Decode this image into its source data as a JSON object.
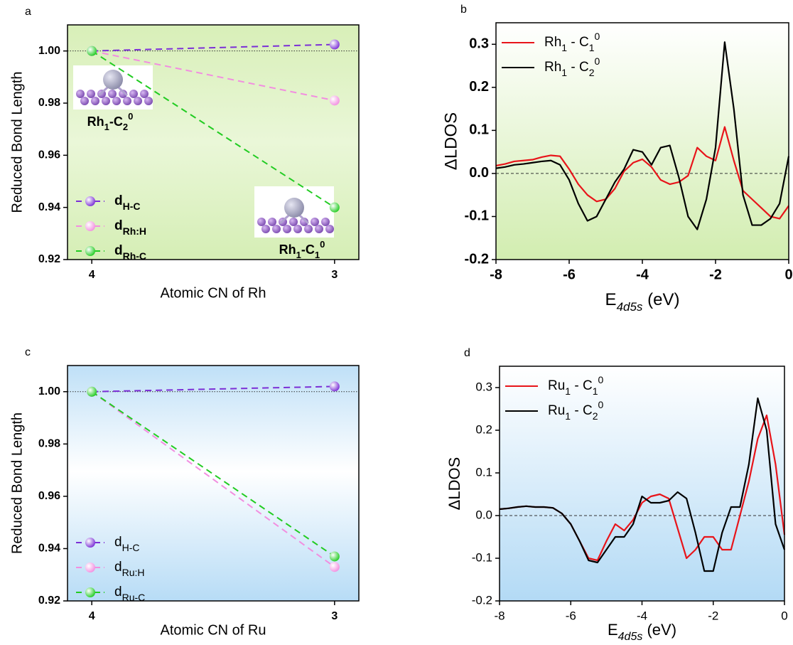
{
  "chart_data": [
    {
      "type": "line",
      "label": "a",
      "x_label": "Atomic CN of Rh",
      "y_label": "Reduced Bond Length",
      "x": [
        4,
        3
      ],
      "xlim": [
        4.1,
        2.9
      ],
      "xticks": [
        4,
        3
      ],
      "ylim": [
        0.92,
        1.01
      ],
      "yticks": [
        0.92,
        0.94,
        0.96,
        0.98,
        {
          "value": 1,
          "label": "1.00"
        }
      ],
      "hline": 1,
      "markers": true,
      "dashed": true,
      "legend": "lower left",
      "series": [
        {
          "name": [
            {
              "text": "d"
            },
            {
              "sub": "H-C"
            }
          ],
          "color": "#7b2fd6",
          "values": [
            1.0,
            1.0025
          ]
        },
        {
          "name": [
            {
              "text": "d"
            },
            {
              "sub": "Rh:H"
            }
          ],
          "color": "#f28ee0",
          "values": [
            1.0,
            0.981
          ]
        },
        {
          "name": [
            {
              "text": "d"
            },
            {
              "sub": "Rh-C"
            }
          ],
          "color": "#22cc22",
          "values": [
            1.0,
            0.94
          ]
        }
      ],
      "annotations": [
        {
          "parts": [
            {
              "text": "Rh"
            },
            {
              "sub": "1"
            },
            {
              "text": "-C"
            },
            {
              "sub": "2"
            },
            {
              "sup": "0"
            }
          ]
        },
        {
          "parts": [
            {
              "text": "Rh"
            },
            {
              "sub": "1"
            },
            {
              "text": "-C"
            },
            {
              "sub": "1"
            },
            {
              "sup": "0"
            }
          ]
        }
      ]
    },
    {
      "type": "line",
      "label": "b",
      "x_label": [
        {
          "text": "E"
        },
        {
          "sub": "4d5s"
        },
        {
          "text": " (eV)"
        }
      ],
      "y_label": "ΔLDOS",
      "x": [
        -8,
        -7.75,
        -7.5,
        -7.25,
        -7,
        -6.75,
        -6.5,
        -6.25,
        -6,
        -5.75,
        -5.5,
        -5.25,
        -5,
        -4.75,
        -4.5,
        -4.25,
        -4,
        -3.75,
        -3.5,
        -3.25,
        -3,
        -2.75,
        -2.5,
        -2.25,
        -2,
        -1.75,
        -1.5,
        -1.25,
        -1,
        -0.75,
        -0.5,
        -0.25,
        0
      ],
      "xlim": [
        -8,
        0
      ],
      "xticks": [
        -8,
        -6,
        -4,
        -2,
        0
      ],
      "ylim": [
        -0.2,
        0.35
      ],
      "yticks": [
        -0.2,
        -0.1,
        {
          "value": 0,
          "label": "0.0"
        },
        0.1,
        0.2,
        0.3
      ],
      "hline": 0,
      "markers": false,
      "dashed": false,
      "legend": "upper left",
      "series": [
        {
          "name": [
            {
              "text": "Rh"
            },
            {
              "sub": "1"
            },
            {
              "text": " - C"
            },
            {
              "sub": "1"
            },
            {
              "sup": "0"
            }
          ],
          "color": "#e8141a",
          "values": [
            0.018,
            0.022,
            0.028,
            0.03,
            0.032,
            0.038,
            0.042,
            0.04,
            0.01,
            -0.025,
            -0.05,
            -0.065,
            -0.06,
            -0.035,
            0.005,
            0.025,
            0.033,
            0.015,
            -0.015,
            -0.025,
            -0.02,
            -0.005,
            0.06,
            0.04,
            0.03,
            0.108,
            0.03,
            -0.04,
            -0.06,
            -0.08,
            -0.1,
            -0.105,
            -0.075
          ]
        },
        {
          "name": [
            {
              "text": "Rh"
            },
            {
              "sub": "1"
            },
            {
              "text": " - C"
            },
            {
              "sub": "2"
            },
            {
              "sup": "0"
            }
          ],
          "color": "#000000",
          "values": [
            0.012,
            0.015,
            0.02,
            0.022,
            0.025,
            0.028,
            0.03,
            0.02,
            -0.015,
            -0.07,
            -0.11,
            -0.1,
            -0.06,
            -0.02,
            0.01,
            0.055,
            0.05,
            0.02,
            0.06,
            0.065,
            -0.01,
            -0.1,
            -0.13,
            -0.06,
            0.06,
            0.305,
            0.15,
            -0.05,
            -0.12,
            -0.12,
            -0.105,
            -0.07,
            0.04
          ]
        }
      ]
    },
    {
      "type": "line",
      "label": "c",
      "x_label": "Atomic CN of Ru",
      "y_label": "Reduced Bond Length",
      "x": [
        4,
        3
      ],
      "xlim": [
        4.1,
        2.9
      ],
      "xticks": [
        4,
        3
      ],
      "ylim": [
        0.92,
        1.01
      ],
      "yticks": [
        0.92,
        0.94,
        0.96,
        0.98,
        {
          "value": 1,
          "label": "1.00"
        }
      ],
      "hline": 1,
      "markers": true,
      "dashed": true,
      "legend": "lower left",
      "series": [
        {
          "name": [
            {
              "text": "d"
            },
            {
              "sub": "H-C"
            }
          ],
          "color": "#7b2fd6",
          "values": [
            1.0,
            1.002
          ]
        },
        {
          "name": [
            {
              "text": "d"
            },
            {
              "sub": "Ru:H"
            }
          ],
          "color": "#f28ee0",
          "values": [
            1.0,
            0.933
          ]
        },
        {
          "name": [
            {
              "text": "d"
            },
            {
              "sub": "Ru-C"
            }
          ],
          "color": "#22cc22",
          "values": [
            1.0,
            0.937
          ]
        }
      ]
    },
    {
      "type": "line",
      "label": "d",
      "x_label": [
        {
          "text": "E"
        },
        {
          "sub": "4d5s"
        },
        {
          "text": " (eV)"
        }
      ],
      "y_label": "ΔLDOS",
      "x": [
        -8,
        -7.75,
        -7.5,
        -7.25,
        -7,
        -6.75,
        -6.5,
        -6.25,
        -6,
        -5.75,
        -5.5,
        -5.25,
        -5,
        -4.75,
        -4.5,
        -4.25,
        -4,
        -3.75,
        -3.5,
        -3.25,
        -3,
        -2.75,
        -2.5,
        -2.25,
        -2,
        -1.75,
        -1.5,
        -1.25,
        -1,
        -0.75,
        -0.5,
        -0.25,
        0
      ],
      "xlim": [
        -8,
        0
      ],
      "xticks": [
        -8,
        -6,
        -4,
        -2,
        0
      ],
      "ylim": [
        -0.2,
        0.35
      ],
      "yticks": [
        -0.2,
        -0.1,
        {
          "value": 0,
          "label": "0.0"
        },
        0.1,
        0.2,
        0.3
      ],
      "hline": 0,
      "markers": false,
      "dashed": false,
      "legend": "upper left",
      "series": [
        {
          "name": [
            {
              "text": "Ru"
            },
            {
              "sub": "1"
            },
            {
              "text": " - C"
            },
            {
              "sub": "1"
            },
            {
              "sup": "0"
            }
          ],
          "color": "#e8141a",
          "values": [
            0.015,
            0.017,
            0.02,
            0.022,
            0.02,
            0.02,
            0.018,
            0.005,
            -0.02,
            -0.06,
            -0.1,
            -0.105,
            -0.06,
            -0.02,
            -0.035,
            -0.01,
            0.03,
            0.045,
            0.05,
            0.04,
            -0.03,
            -0.1,
            -0.08,
            -0.05,
            -0.05,
            -0.08,
            -0.08,
            0.0,
            0.08,
            0.18,
            0.235,
            0.12,
            -0.045
          ]
        },
        {
          "name": [
            {
              "text": "Ru"
            },
            {
              "sub": "1"
            },
            {
              "text": " - C"
            },
            {
              "sub": "2"
            },
            {
              "sup": "0"
            }
          ],
          "color": "#000000",
          "values": [
            0.015,
            0.017,
            0.02,
            0.022,
            0.02,
            0.02,
            0.018,
            0.005,
            -0.02,
            -0.06,
            -0.105,
            -0.11,
            -0.08,
            -0.05,
            -0.05,
            -0.02,
            0.045,
            0.03,
            0.03,
            0.035,
            0.055,
            0.04,
            -0.04,
            -0.13,
            -0.13,
            -0.04,
            0.02,
            0.02,
            0.12,
            0.275,
            0.2,
            -0.02,
            -0.08
          ]
        }
      ]
    }
  ]
}
